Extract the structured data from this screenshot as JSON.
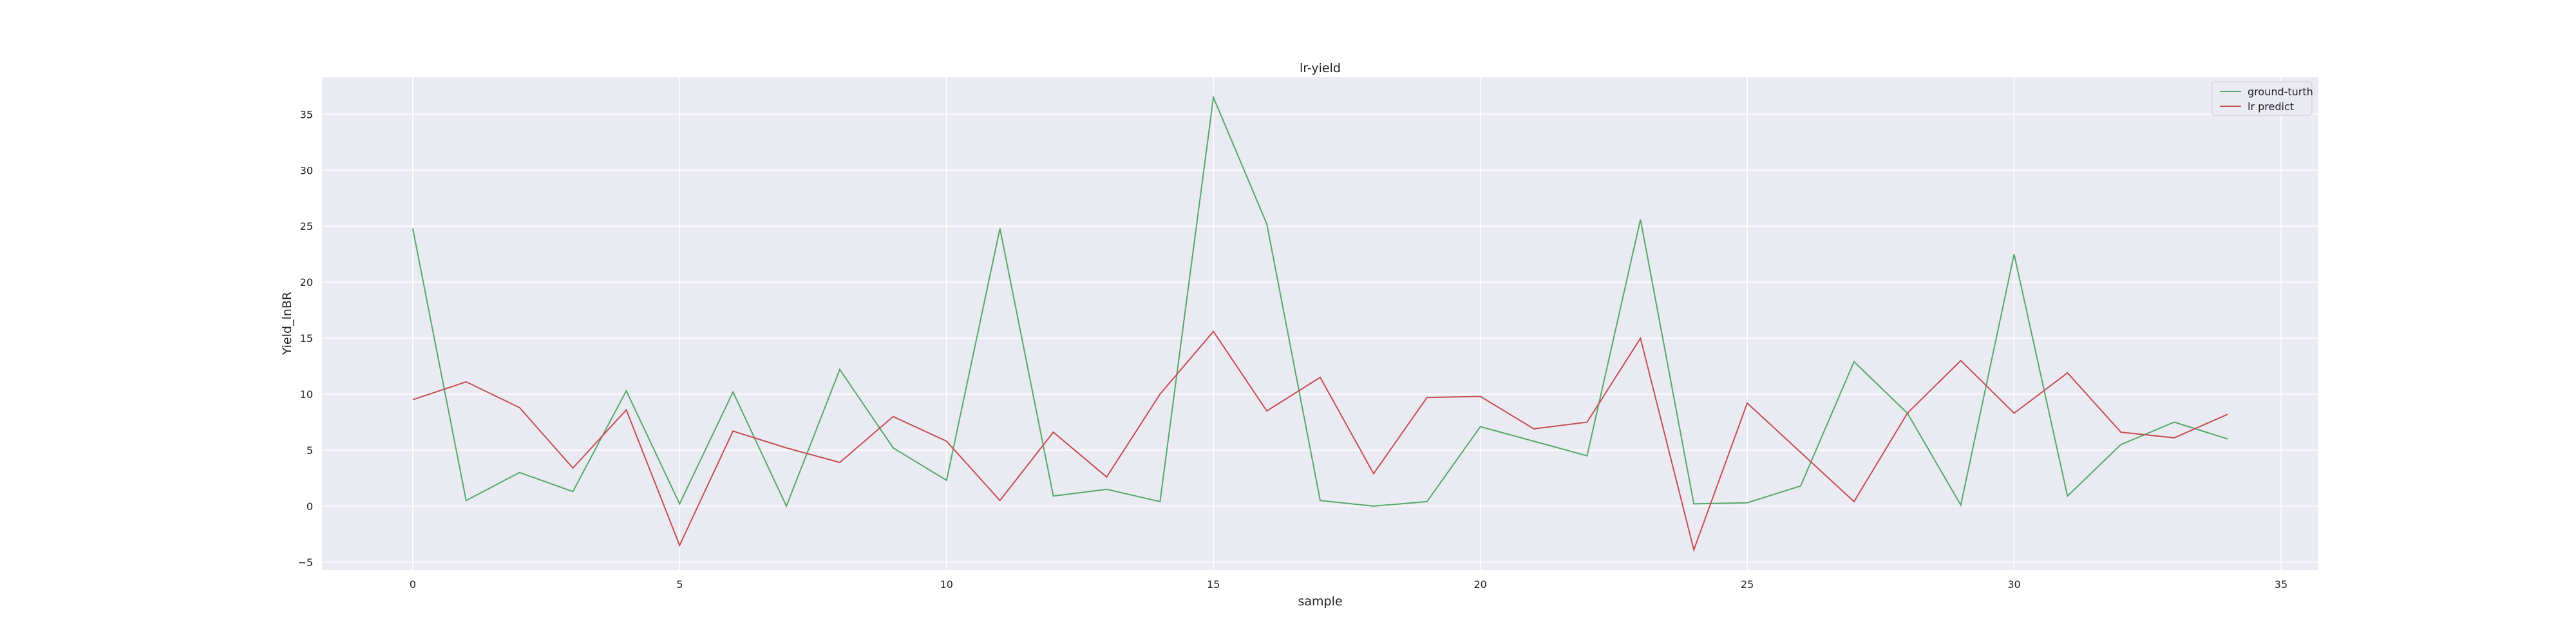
{
  "chart_data": {
    "type": "line",
    "title": "lr-yield",
    "xlabel": "sample",
    "ylabel": "Yield_lnBR",
    "xlim": [
      -1.7,
      35.7
    ],
    "ylim": [
      -5.7,
      38.3
    ],
    "x_ticks": [
      0,
      5,
      10,
      15,
      20,
      25,
      30,
      35
    ],
    "y_ticks": [
      -5,
      0,
      5,
      10,
      15,
      20,
      25,
      30,
      35
    ],
    "x_tick_labels": [
      "0",
      "5",
      "10",
      "15",
      "20",
      "25",
      "30",
      "35"
    ],
    "y_tick_labels": [
      "−5",
      "0",
      "5",
      "10",
      "15",
      "20",
      "25",
      "30",
      "35"
    ],
    "grid": true,
    "legend_position": "top-right",
    "background_color": "#eaeaf2",
    "x": [
      0,
      1,
      2,
      3,
      4,
      5,
      6,
      7,
      8,
      9,
      10,
      11,
      12,
      13,
      14,
      15,
      16,
      17,
      18,
      19,
      20,
      21,
      22,
      23,
      24,
      25,
      26,
      27,
      28,
      29,
      30,
      31,
      32,
      33,
      34
    ],
    "series": [
      {
        "name": "ground-turth",
        "color": "#55a868",
        "values": [
          24.8,
          0.5,
          3.0,
          1.3,
          10.3,
          0.2,
          10.2,
          0.0,
          12.2,
          5.2,
          2.3,
          24.8,
          0.9,
          1.5,
          0.4,
          36.5,
          25.2,
          0.5,
          0.0,
          0.4,
          7.1,
          5.8,
          4.5,
          25.6,
          0.2,
          0.3,
          1.8,
          12.9,
          8.3,
          0.1,
          22.5,
          0.9,
          5.5,
          7.5,
          6.0
        ]
      },
      {
        "name": "lr predict",
        "color": "#c44e52",
        "values": [
          9.5,
          11.1,
          8.8,
          3.4,
          8.6,
          -3.5,
          6.7,
          5.2,
          3.9,
          8.0,
          5.8,
          0.5,
          6.6,
          2.6,
          10.0,
          15.6,
          8.5,
          11.5,
          2.9,
          9.7,
          9.8,
          6.9,
          7.5,
          15.0,
          -3.9,
          9.2,
          4.8,
          0.4,
          8.3,
          13.0,
          8.3,
          11.9,
          6.6,
          6.1,
          8.2
        ]
      }
    ]
  }
}
